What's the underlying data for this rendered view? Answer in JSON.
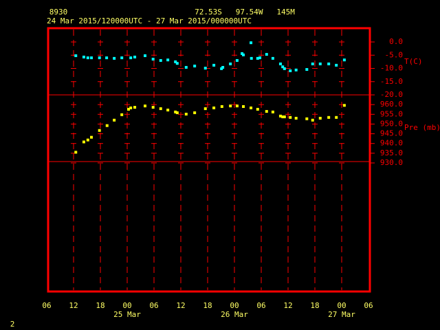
{
  "header": {
    "station": "8930",
    "location": "72.53S   97.54W   145M",
    "time_range": "24 Mar 2015/120000UTC - 27 Mar 2015/000000UTC",
    "page_number": "2"
  },
  "chart_data": [
    {
      "type": "scatter",
      "axis_label": "T(C)",
      "color": "#00ffff",
      "xlim": [
        0,
        72
      ],
      "xticks": [
        {
          "value": 0,
          "label": "06"
        },
        {
          "value": 6,
          "label": "12"
        },
        {
          "value": 12,
          "label": "18"
        },
        {
          "value": 18,
          "label": "00"
        },
        {
          "value": 24,
          "label": "06"
        },
        {
          "value": 30,
          "label": "12"
        },
        {
          "value": 36,
          "label": "18"
        },
        {
          "value": 42,
          "label": "00"
        },
        {
          "value": 48,
          "label": "06"
        },
        {
          "value": 54,
          "label": "12"
        },
        {
          "value": 60,
          "label": "18"
        },
        {
          "value": 66,
          "label": "00"
        },
        {
          "value": 72,
          "label": "06"
        }
      ],
      "x_date_labels": [
        {
          "value": 18,
          "label": "25 Mar"
        },
        {
          "value": 42,
          "label": "26 Mar"
        },
        {
          "value": 66,
          "label": "27 Mar"
        }
      ],
      "ylim": [
        -20,
        5.2
      ],
      "yticks": [
        {
          "value": 0,
          "label": "0.0"
        },
        {
          "value": -5,
          "label": "-5.0"
        },
        {
          "value": -10,
          "label": "-10.0"
        },
        {
          "value": -15,
          "label": "-15.0"
        },
        {
          "value": -20,
          "label": "-20.0"
        }
      ],
      "x": [
        6.5,
        8.3,
        9.2,
        10.0,
        11.8,
        13.4,
        15.1,
        16.8,
        18.8,
        19.7,
        22.0,
        23.8,
        25.5,
        27.1,
        28.8,
        29.2,
        31.2,
        33.1,
        35.5,
        37.4,
        39.1,
        39.4,
        41.1,
        42.6,
        43.7,
        44.0,
        45.7,
        45.8,
        47.2,
        47.7,
        49.2,
        50.6,
        52.3,
        52.8,
        53.2,
        54.5,
        55.8,
        58.2,
        59.5,
        61.2,
        63.1,
        64.8,
        66.6
      ],
      "values": [
        -5.2,
        -5.7,
        -6.0,
        -6.0,
        -6.0,
        -6.0,
        -6.2,
        -6.0,
        -6.0,
        -5.7,
        -5.2,
        -6.5,
        -7.0,
        -6.8,
        -7.5,
        -8.1,
        -9.6,
        -9.1,
        -9.9,
        -8.8,
        -10.1,
        -9.6,
        -8.3,
        -7.0,
        -4.4,
        -4.9,
        -0.3,
        -6.2,
        -6.2,
        -6.0,
        -4.7,
        -6.2,
        -8.3,
        -9.4,
        -10.1,
        -10.9,
        -10.6,
        -10.4,
        -8.3,
        -8.3,
        -8.3,
        -8.8,
        -6.8
      ]
    },
    {
      "type": "scatter",
      "axis_label": "Pre (mb)",
      "color": "#ffff00",
      "ylim": [
        930,
        965
      ],
      "yticks": [
        {
          "value": 960,
          "label": "960.0"
        },
        {
          "value": 955,
          "label": "955.0"
        },
        {
          "value": 950,
          "label": "950.0"
        },
        {
          "value": 945,
          "label": "945.0"
        },
        {
          "value": 940,
          "label": "940.0"
        },
        {
          "value": 935,
          "label": "935.0"
        },
        {
          "value": 930,
          "label": "930.0"
        }
      ],
      "x": [
        6.5,
        8.3,
        9.2,
        10.0,
        11.8,
        13.5,
        15.1,
        16.8,
        18.3,
        18.8,
        19.7,
        22.0,
        23.8,
        25.5,
        27.1,
        28.8,
        29.2,
        31.2,
        33.1,
        35.5,
        37.4,
        39.2,
        41.1,
        42.6,
        44.0,
        45.7,
        47.2,
        49.2,
        50.6,
        52.3,
        52.8,
        53.2,
        54.5,
        55.8,
        58.2,
        59.5,
        61.2,
        63.1,
        64.8,
        66.6
      ],
      "values": [
        935.5,
        940.8,
        941.8,
        943.2,
        946.7,
        949.2,
        952.0,
        954.8,
        957.6,
        958.3,
        958.6,
        959.3,
        958.6,
        957.9,
        957.2,
        956.2,
        955.8,
        955.1,
        955.8,
        957.9,
        958.3,
        959.0,
        959.3,
        959.3,
        959.0,
        958.3,
        957.6,
        956.5,
        956.2,
        954.1,
        953.7,
        953.7,
        953.4,
        953.0,
        952.7,
        952.0,
        953.0,
        953.4,
        953.4,
        959.6
      ]
    }
  ]
}
